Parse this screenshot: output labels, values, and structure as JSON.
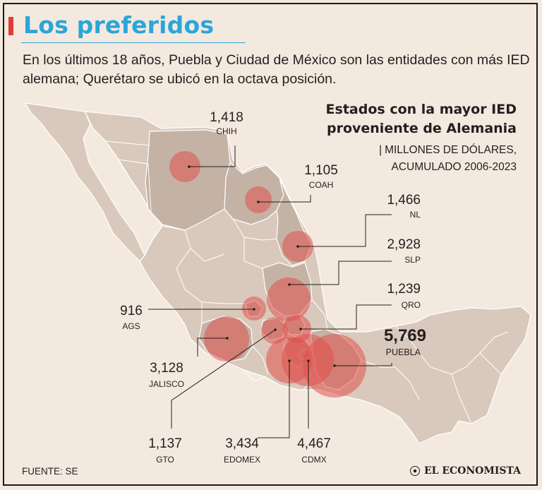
{
  "header": {
    "title": "Los preferidos",
    "subtitle": "En los últimos 18 años, Puebla y Ciudad de México son las entidades con más IED alemana; Querétaro se ubicó en la octava posición."
  },
  "legend": {
    "title_line1": "Estados con la mayor IED",
    "title_line2": "proveniente de Alemania",
    "units_line1": "MILLONES DE DÓLARES,",
    "units_line2": "ACUMULADO 2006-2023",
    "units_marker": "|"
  },
  "colors": {
    "background": "#f4e9df",
    "title": "#2aa6d9",
    "accent": "#e63a34",
    "land": "#d9c9bc",
    "highlight_land": "#bfaea2",
    "bubble": "#e0524c"
  },
  "states": [
    {
      "code": "CHIH",
      "value": "1,418",
      "amount": 1418
    },
    {
      "code": "COAH",
      "value": "1,105",
      "amount": 1105
    },
    {
      "code": "NL",
      "value": "1,466",
      "amount": 1466
    },
    {
      "code": "SLP",
      "value": "2,928",
      "amount": 2928
    },
    {
      "code": "QRO",
      "value": "1,239",
      "amount": 1239
    },
    {
      "code": "PUEBLA",
      "value": "5,769",
      "amount": 5769
    },
    {
      "code": "AGS",
      "value": "916",
      "amount": 916
    },
    {
      "code": "JALISCO",
      "value": "3,128",
      "amount": 3128
    },
    {
      "code": "GTO",
      "value": "1,137",
      "amount": 1137
    },
    {
      "code": "EDOMEX",
      "value": "3,434",
      "amount": 3434
    },
    {
      "code": "CDMX",
      "value": "4,467",
      "amount": 4467
    }
  ],
  "footer": {
    "source": "FUENTE: SE",
    "brand": "EL ECONOMISTA"
  }
}
